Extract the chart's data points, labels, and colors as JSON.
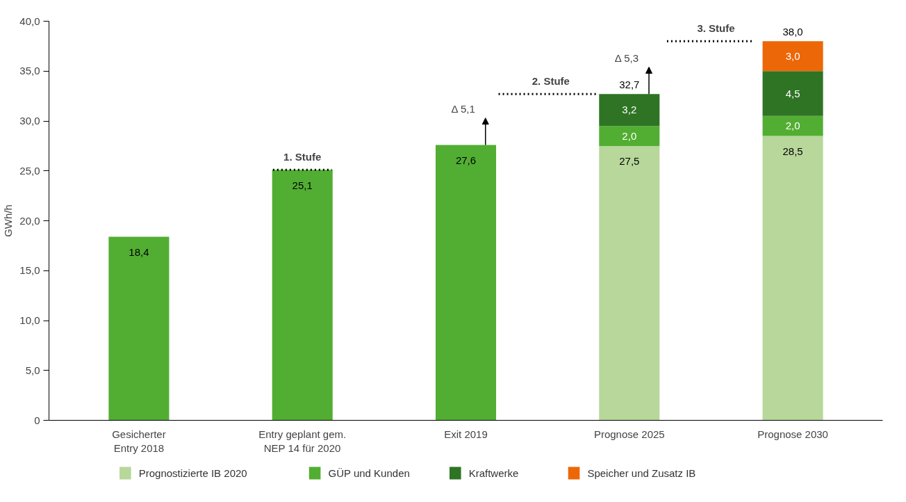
{
  "chart_data": {
    "type": "bar",
    "stacked": true,
    "ylabel": "GWh/h",
    "categories": [
      "Gesicherter\nEntry 2018",
      "Entry geplant gem.\nNEP 14 für 2020",
      "Exit 2019",
      "Prognose 2025",
      "Prognose 2030"
    ],
    "series": [
      {
        "name": "Prognostizierte IB 2020",
        "color": "#b7d79b",
        "values": [
          null,
          null,
          null,
          27.5,
          28.5
        ],
        "value_labels": [
          null,
          null,
          null,
          "27,5",
          "28,5"
        ]
      },
      {
        "name": "GÜP und Kunden",
        "color": "#52ae32",
        "values": [
          18.4,
          25.1,
          27.6,
          2.0,
          2.0
        ],
        "value_labels": [
          "18,4",
          "25,1",
          "27,6",
          "2,0",
          "2,0"
        ]
      },
      {
        "name": "Kraftwerke",
        "color": "#2e7424",
        "values": [
          null,
          null,
          null,
          3.2,
          4.5
        ],
        "value_labels": [
          null,
          null,
          null,
          "3,2",
          "4,5"
        ]
      },
      {
        "name": "Speicher und Zusatz IB",
        "color": "#ec6707",
        "values": [
          null,
          null,
          null,
          null,
          3.0
        ],
        "value_labels": [
          null,
          null,
          null,
          null,
          "3,0"
        ]
      }
    ],
    "totals": [
      null,
      null,
      null,
      "32,7",
      "38,0"
    ],
    "ylim": [
      0,
      40
    ],
    "yticks": [
      {
        "value": 0,
        "label": "0"
      },
      {
        "value": 5,
        "label": "5,0"
      },
      {
        "value": 10,
        "label": "10,0"
      },
      {
        "value": 15,
        "label": "15,0"
      },
      {
        "value": 20,
        "label": "20,0"
      },
      {
        "value": 25,
        "label": "25,0"
      },
      {
        "value": 30,
        "label": "30,0"
      },
      {
        "value": 35,
        "label": "35,0"
      },
      {
        "value": 40,
        "label": "40,0"
      }
    ],
    "annotations": [
      "Δ 5,1",
      "Δ 5,3"
    ],
    "ref_lines": [
      {
        "axis": "y",
        "value": 25.1,
        "label": "1. Stufe",
        "line_style": "dotted",
        "color": "#000000"
      },
      {
        "axis": "y",
        "value": 32.7,
        "label": "2. Stufe",
        "line_style": "dotted",
        "color": "#000000"
      },
      {
        "axis": "y",
        "value": 38.0,
        "label": "3. Stufe",
        "line_style": "dotted",
        "color": "#000000"
      }
    ],
    "legend": "bottom",
    "grid": false
  }
}
